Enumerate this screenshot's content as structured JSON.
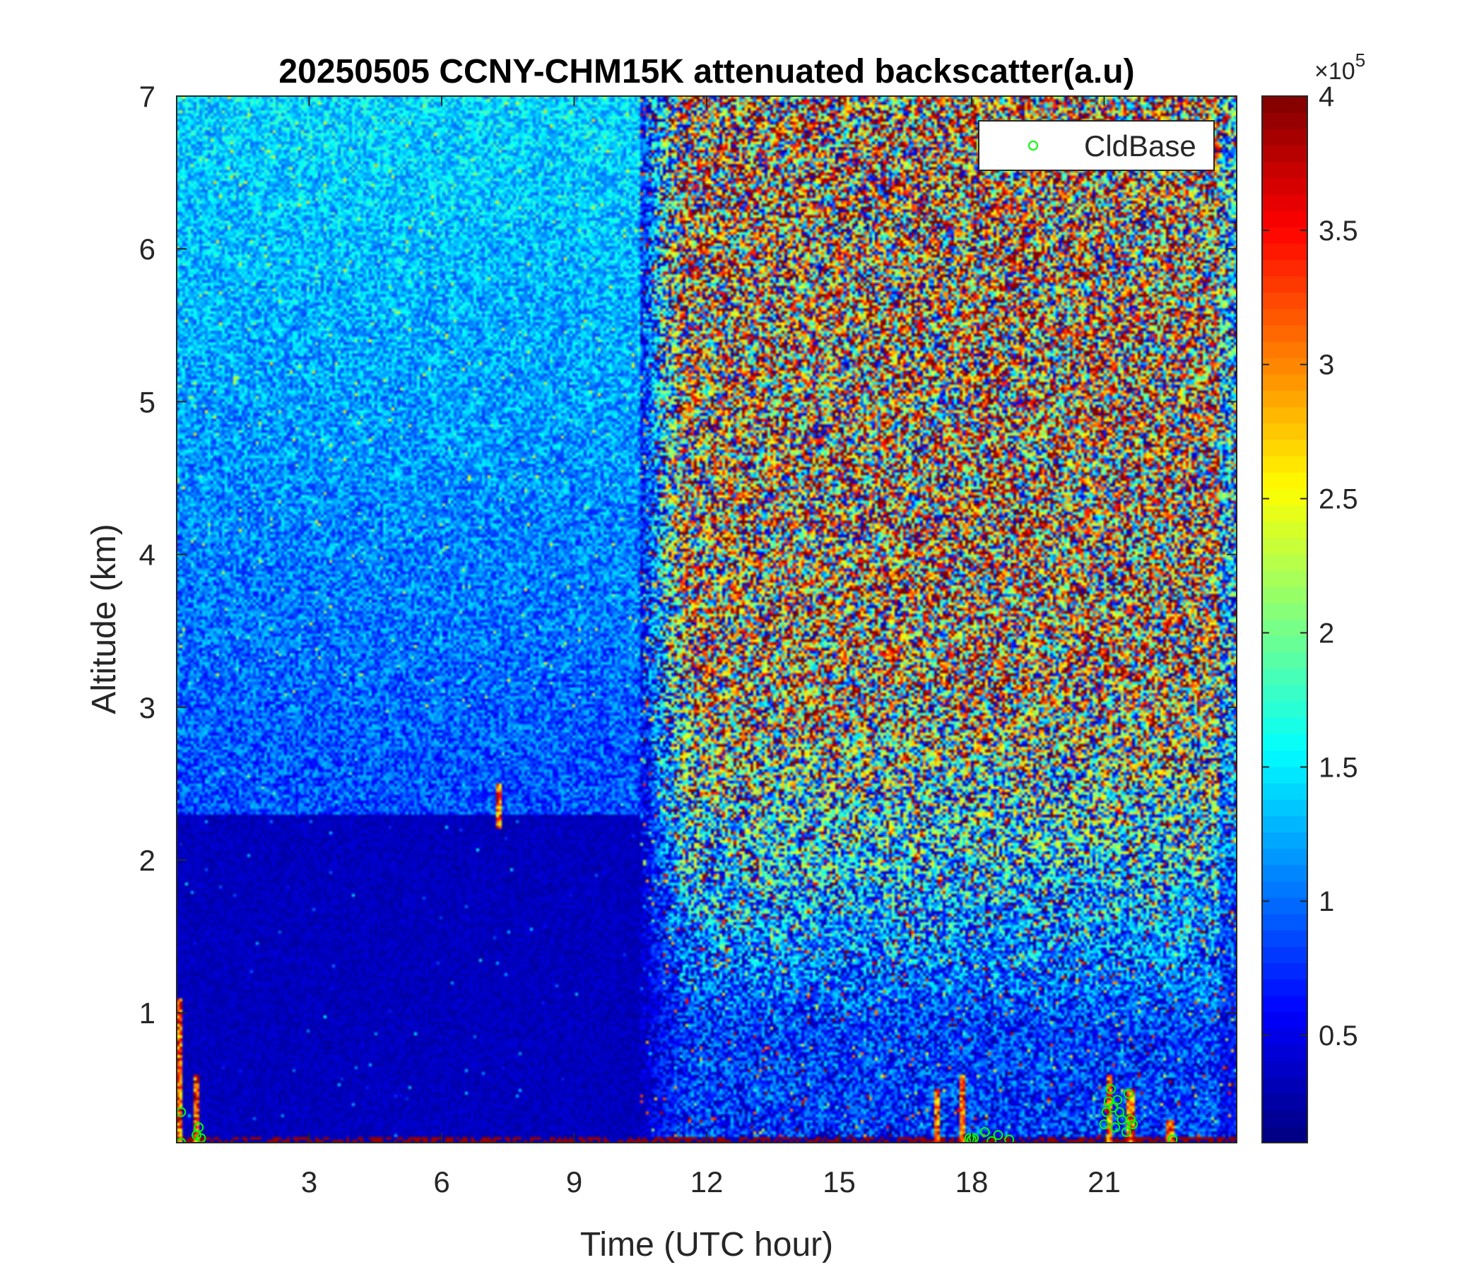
{
  "chart_data": {
    "type": "heatmap",
    "title": "20250505 CCNY-CHM15K attenuated backscatter(a.u)",
    "xlabel": "Time (UTC hour)",
    "ylabel": "Altitude (km)",
    "xlim": [
      0,
      24
    ],
    "ylim": [
      0.15,
      7
    ],
    "xticks": [
      3,
      6,
      9,
      12,
      15,
      18,
      21
    ],
    "yticks": [
      1,
      2,
      3,
      4,
      5,
      6,
      7
    ],
    "colorbar": {
      "colormap": "jet",
      "clim": [
        0.1,
        4
      ],
      "ticks": [
        0.5,
        1,
        1.5,
        2,
        2.5,
        3,
        3.5,
        4
      ],
      "exponent_label": "×10",
      "exponent": "5"
    },
    "grid": false,
    "legend": {
      "location": "top-right",
      "entries": [
        "CldBase"
      ],
      "marker_color": "#00ff00"
    },
    "series": [
      {
        "name": "CldBase",
        "type": "scatter",
        "x": [
          0.1,
          0.1,
          0.45,
          0.5,
          0.55,
          17.95,
          18.0,
          18.05,
          18.3,
          18.45,
          18.6,
          18.85,
          21.0,
          21.05,
          21.1,
          21.15,
          21.2,
          21.25,
          21.3,
          21.35,
          21.4,
          21.5,
          21.55,
          21.6,
          21.65,
          22.55
        ],
        "y": [
          0.15,
          0.35,
          0.2,
          0.25,
          0.18,
          0.18,
          0.17,
          0.18,
          0.22,
          0.16,
          0.2,
          0.17,
          0.27,
          0.35,
          0.42,
          0.5,
          0.38,
          0.25,
          0.43,
          0.35,
          0.3,
          0.22,
          0.47,
          0.3,
          0.27,
          0.17
        ]
      }
    ],
    "description_notes": {
      "background": "low values (dark blue) near the surface layer up to ~2 km before hour 10",
      "enhanced_region": "strong noisy high values (red) above ~2-3 km between ~10 and 24 UTC",
      "surface_layer": "saturated values (dark red) in lowest ~0.15 km with spikes near 0, 7.3, 17-18, 21-22 UTC"
    }
  }
}
